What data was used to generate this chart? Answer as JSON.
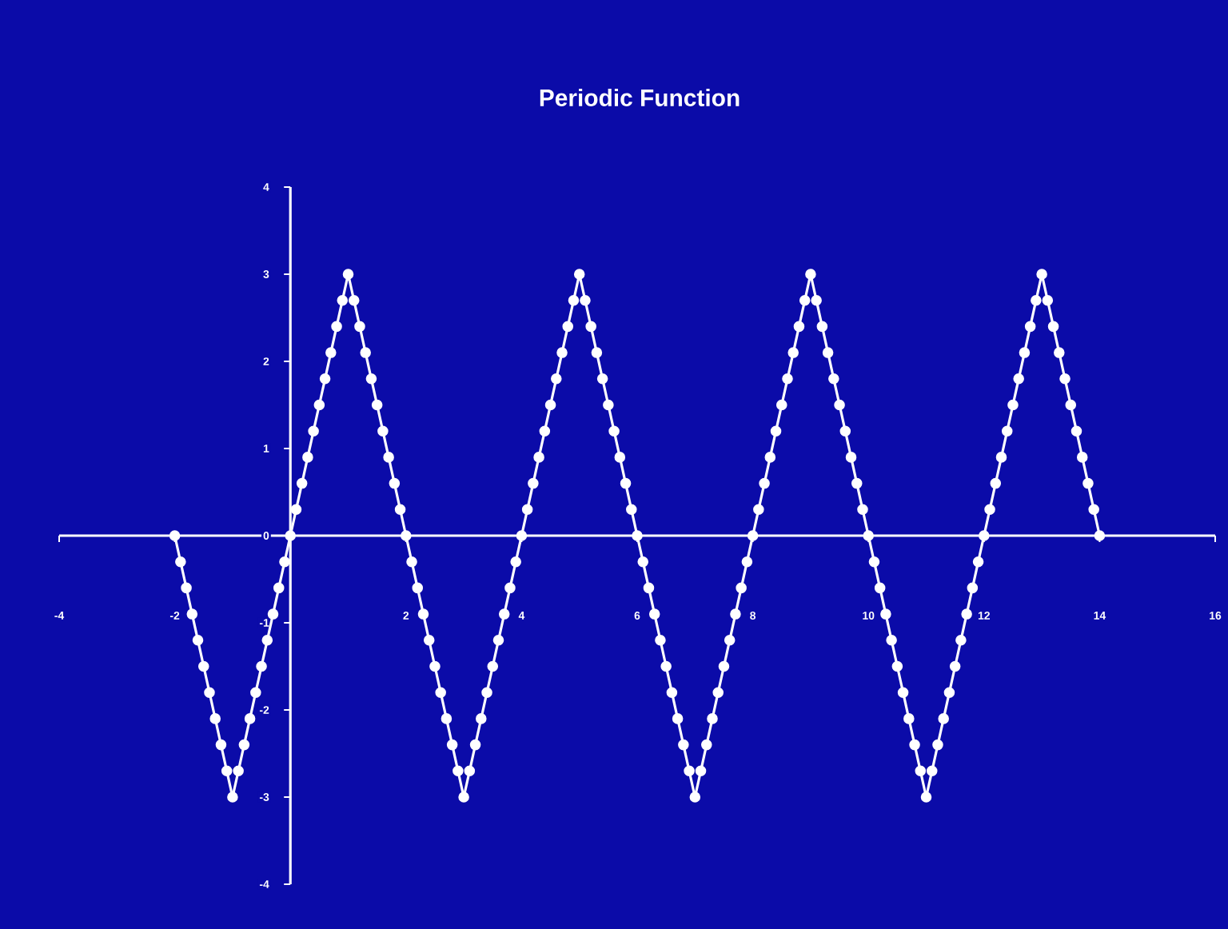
{
  "chart_data": {
    "type": "line",
    "title": "Periodic Function",
    "x": [
      -2,
      -1.9,
      -1.8,
      -1.7,
      -1.6,
      -1.5,
      -1.4,
      -1.3,
      -1.2,
      -1.1,
      -1,
      -0.9,
      -0.8,
      -0.7,
      -0.6,
      -0.5,
      -0.4,
      -0.3,
      -0.2,
      -0.1,
      0,
      0.1,
      0.2,
      0.3,
      0.4,
      0.5,
      0.6,
      0.7,
      0.8,
      0.9,
      1,
      1.1,
      1.2,
      1.3,
      1.4,
      1.5,
      1.6,
      1.7,
      1.8,
      1.9,
      2,
      2.1,
      2.2,
      2.3,
      2.4,
      2.5,
      2.6,
      2.7,
      2.8,
      2.9,
      3,
      3.1,
      3.2,
      3.3,
      3.4,
      3.5,
      3.6,
      3.7,
      3.8,
      3.9,
      4,
      4.1,
      4.2,
      4.3,
      4.4,
      4.5,
      4.6,
      4.7,
      4.8,
      4.9,
      5,
      5.1,
      5.2,
      5.3,
      5.4,
      5.5,
      5.6,
      5.7,
      5.8,
      5.9,
      6,
      6.1,
      6.2,
      6.3,
      6.4,
      6.5,
      6.6,
      6.7,
      6.8,
      6.9,
      7,
      7.1,
      7.2,
      7.3,
      7.4,
      7.5,
      7.6,
      7.7,
      7.8,
      7.9,
      8,
      8.1,
      8.2,
      8.3,
      8.4,
      8.5,
      8.6,
      8.7,
      8.8,
      8.9,
      9,
      9.1,
      9.2,
      9.3,
      9.4,
      9.5,
      9.6,
      9.7,
      9.8,
      9.9,
      10,
      10.1,
      10.2,
      10.3,
      10.4,
      10.5,
      10.6,
      10.7,
      10.8,
      10.9,
      11,
      11.1,
      11.2,
      11.3,
      11.4,
      11.5,
      11.6,
      11.7,
      11.8,
      11.9,
      12,
      12.1,
      12.2,
      12.3,
      12.4,
      12.5,
      12.6,
      12.7,
      12.8,
      12.9,
      13,
      13.1,
      13.2,
      13.3,
      13.4,
      13.5,
      13.6,
      13.7,
      13.8,
      13.9,
      14
    ],
    "series": [
      {
        "color": "#ffffff",
        "values": [
          0,
          -0.3,
          -0.6,
          -0.9,
          -1.2,
          -1.5,
          -1.8,
          -2.1,
          -2.4,
          -2.7,
          -3,
          -2.7,
          -2.4,
          -2.1,
          -1.8,
          -1.5,
          -1.2,
          -0.9,
          -0.6,
          -0.3,
          0,
          0.3,
          0.6,
          0.9,
          1.2,
          1.5,
          1.8,
          2.1,
          2.4,
          2.7,
          3,
          2.7,
          2.4,
          2.1,
          1.8,
          1.5,
          1.2,
          0.9,
          0.6,
          0.3,
          0,
          -0.3,
          -0.6,
          -0.9,
          -1.2,
          -1.5,
          -1.8,
          -2.1,
          -2.4,
          -2.7,
          -3,
          -2.7,
          -2.4,
          -2.1,
          -1.8,
          -1.5,
          -1.2,
          -0.9,
          -0.6,
          -0.3,
          0,
          0.3,
          0.6,
          0.9,
          1.2,
          1.5,
          1.8,
          2.1,
          2.4,
          2.7,
          3,
          2.7,
          2.4,
          2.1,
          1.8,
          1.5,
          1.2,
          0.9,
          0.6,
          0.3,
          0,
          -0.3,
          -0.6,
          -0.9,
          -1.2,
          -1.5,
          -1.8,
          -2.1,
          -2.4,
          -2.7,
          -3,
          -2.7,
          -2.4,
          -2.1,
          -1.8,
          -1.5,
          -1.2,
          -0.9,
          -0.6,
          -0.3,
          0,
          0.3,
          0.6,
          0.9,
          1.2,
          1.5,
          1.8,
          2.1,
          2.4,
          2.7,
          3,
          2.7,
          2.4,
          2.1,
          1.8,
          1.5,
          1.2,
          0.9,
          0.6,
          0.3,
          0,
          -0.3,
          -0.6,
          -0.9,
          -1.2,
          -1.5,
          -1.8,
          -2.1,
          -2.4,
          -2.7,
          -3,
          -2.7,
          -2.4,
          -2.1,
          -1.8,
          -1.5,
          -1.2,
          -0.9,
          -0.6,
          -0.3,
          0,
          0.3,
          0.6,
          0.9,
          1.2,
          1.5,
          1.8,
          2.1,
          2.4,
          2.7,
          3,
          2.7,
          2.4,
          2.1,
          1.8,
          1.5,
          1.2,
          0.9,
          0.6,
          0.3,
          0
        ]
      }
    ],
    "xlim": [
      -4,
      16
    ],
    "ylim": [
      -4,
      4
    ],
    "xticks": [
      -4,
      -2,
      2,
      4,
      6,
      8,
      10,
      12,
      14,
      16
    ],
    "yticks": [
      -4,
      -3,
      -2,
      -1,
      0,
      1,
      2,
      3,
      4
    ],
    "marker": "circle",
    "line_style": "solid"
  }
}
